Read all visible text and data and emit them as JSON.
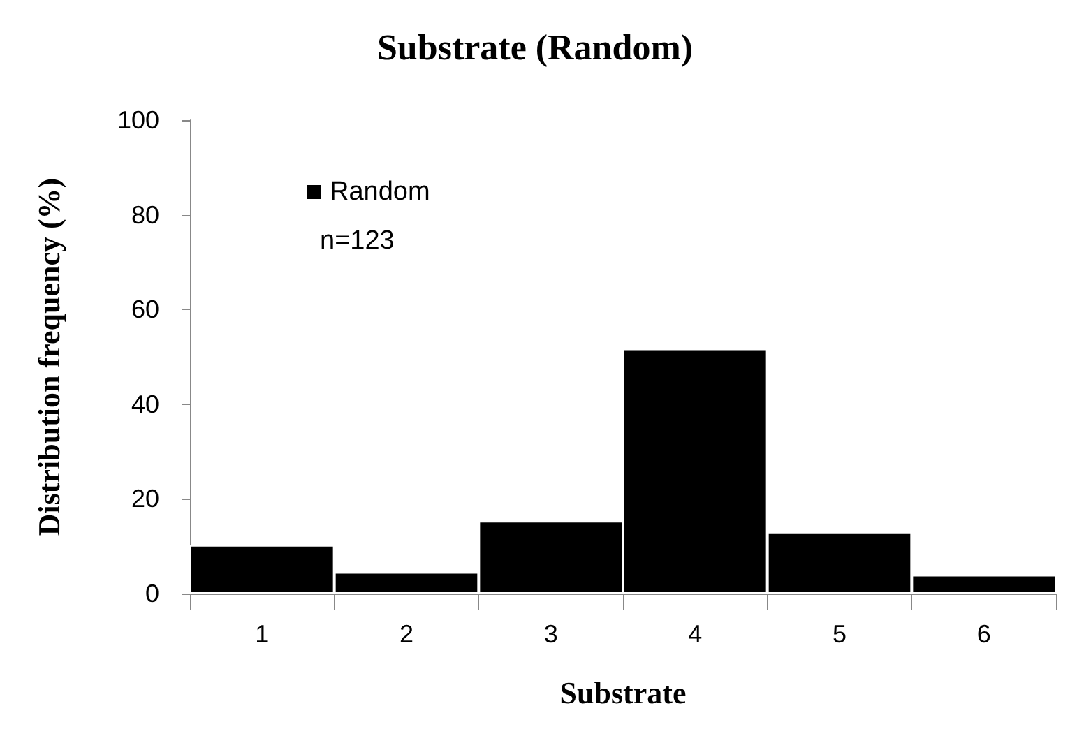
{
  "chart_data": {
    "type": "bar",
    "title": "Substrate (Random)",
    "xlabel": "Substrate",
    "ylabel": "Distribution frequency (%)",
    "categories": [
      "1",
      "2",
      "3",
      "4",
      "5",
      "6"
    ],
    "series": [
      {
        "name": "Random",
        "color": "#000000",
        "values": [
          10.2,
          4.5,
          15.3,
          51.7,
          13.0,
          3.9
        ]
      }
    ],
    "ylim": [
      0,
      100
    ],
    "yticks": [
      0,
      20,
      40,
      60,
      80,
      100
    ],
    "grid": false,
    "legend": "top left",
    "annotations": [
      "n=123"
    ]
  }
}
